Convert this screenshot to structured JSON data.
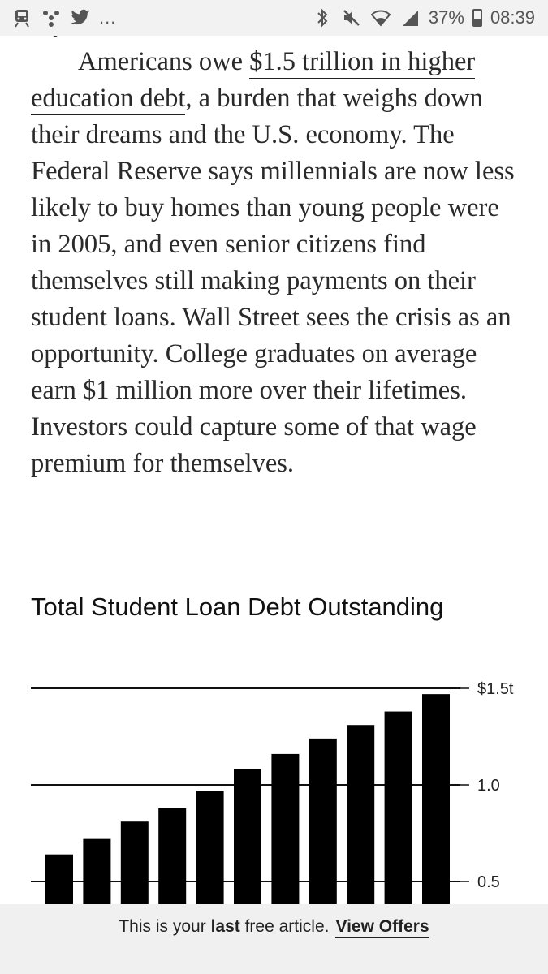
{
  "status_bar": {
    "left_icons": [
      "train-icon",
      "pinwheel-icon",
      "twitter-icon"
    ],
    "more": "...",
    "right_icons": [
      "bluetooth-icon",
      "mute-icon",
      "wifi-icon",
      "signal-icon"
    ],
    "battery": "37%",
    "battery_level": 0.37,
    "time": "08:39"
  },
  "article": {
    "cut_line": "says Wrobiewski.",
    "para_prefix": "Americans owe ",
    "link_text": "$1.5 trillion in higher education debt",
    "para_rest": ", a burden that weighs down their dreams and the U.S. economy. The Federal Reserve says millennials are now less likely to buy homes than young people were in 2005, and even senior citizens find themselves still making payments on their student loans. Wall Street sees the crisis as an opportunity. College graduates on average earn $1 million more over their lifetimes. Investors could capture some of that wage premium for themselves."
  },
  "chart_data": {
    "type": "bar",
    "title": "Total Student Loan Debt Outstanding",
    "values": [
      0.64,
      0.72,
      0.81,
      0.88,
      0.97,
      1.08,
      1.16,
      1.24,
      1.31,
      1.38,
      1.47
    ],
    "ytick_labels": [
      "$1.5t",
      "1.0",
      "0.5"
    ],
    "yticks": [
      1.5,
      1.0,
      0.5
    ],
    "ylim": [
      0.4,
      1.5
    ],
    "grid": true,
    "bar_color": "#000000"
  },
  "paywall": {
    "prefix": "This is your ",
    "bold": "last",
    "suffix": " free article.",
    "offer_label": "View Offers"
  }
}
